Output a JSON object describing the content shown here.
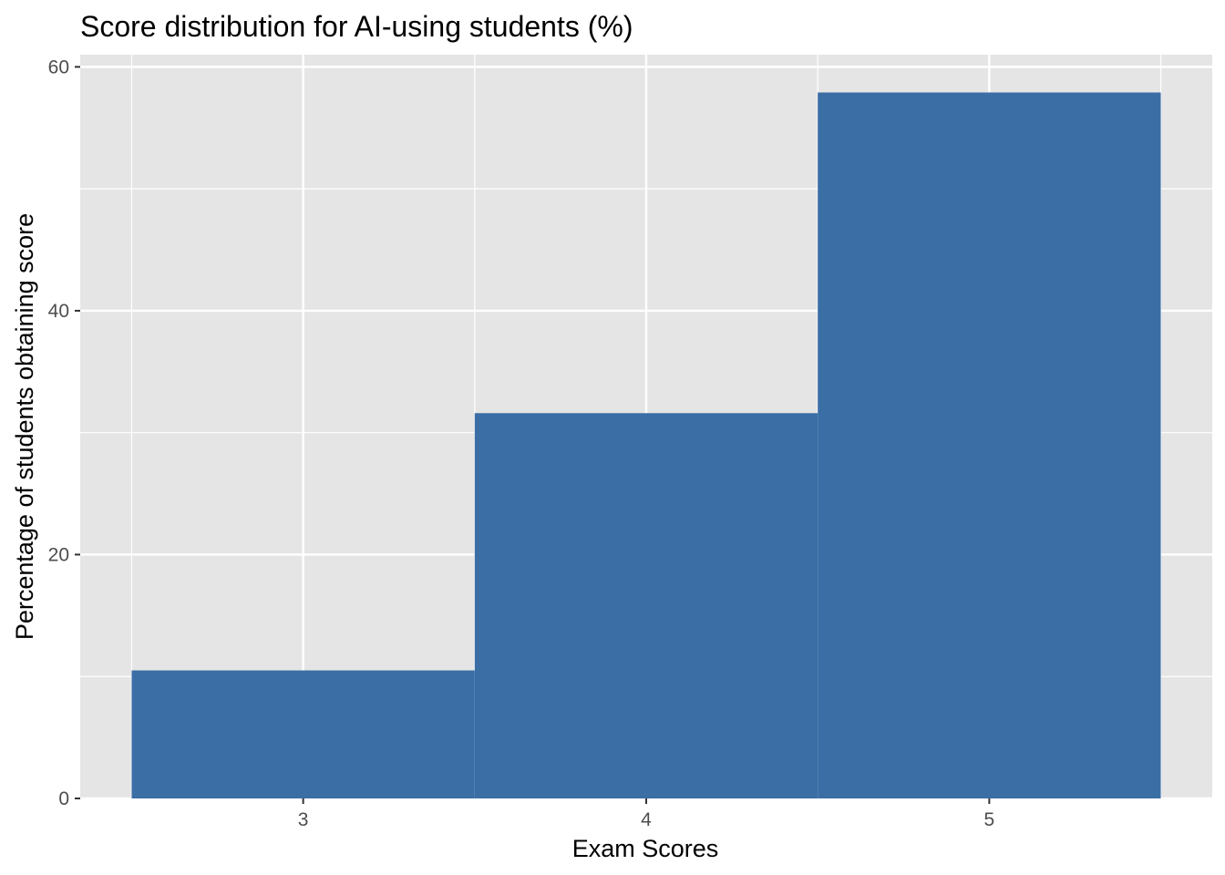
{
  "chart_data": {
    "type": "bar",
    "title": "Score distribution for AI-using students (%)",
    "xlabel": "Exam Scores",
    "ylabel": "Percentage of students obtaining score",
    "categories": [
      "3",
      "4",
      "5"
    ],
    "x": [
      3,
      4,
      5
    ],
    "values": [
      10.5,
      31.6,
      57.9
    ],
    "xlim": [
      2.35,
      5.65
    ],
    "ylim": [
      0,
      61
    ],
    "y_ticks": [
      0,
      20,
      40,
      60
    ],
    "y_tick_labels": [
      "0",
      "20",
      "40",
      "60"
    ],
    "y_minor_ticks": [
      10,
      30,
      50
    ],
    "grid": true,
    "legend": "none",
    "colors": {
      "bar": "#3a6ea5",
      "panel": "#e5e5e5",
      "grid": "#ffffff",
      "tick_text": "#4d4d4d",
      "tick_mark": "#333333"
    }
  }
}
